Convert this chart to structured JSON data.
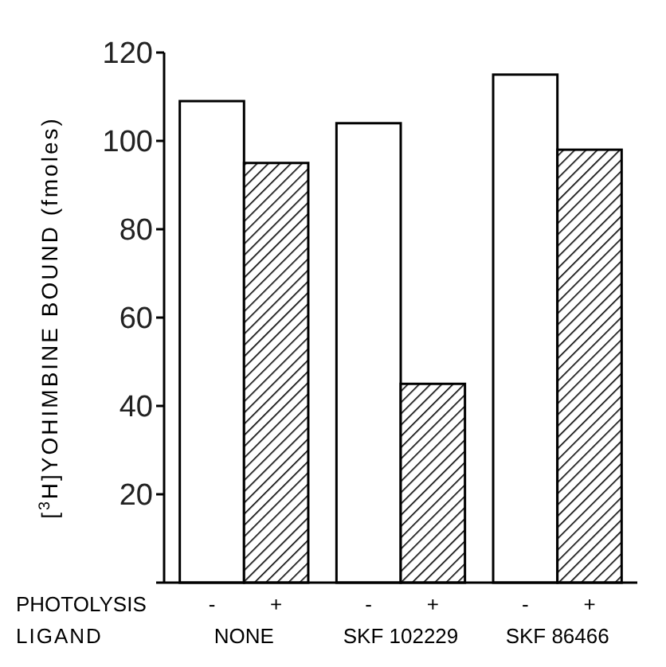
{
  "chart_data": {
    "type": "bar",
    "ylabel": "[$^{3}$H]YOHIMBINE BOUND (fmoles)",
    "xlabel": "LIGAND",
    "legend_title": "PHOTOLYSIS",
    "categories": [
      "NONE",
      "SKF 102229",
      "SKF 86466"
    ],
    "series": [
      {
        "name": "-",
        "color": "#ffffff",
        "values": [
          109,
          104,
          115
        ]
      },
      {
        "name": "+",
        "color": "#000000",
        "values": [
          95,
          45,
          98
        ]
      }
    ],
    "ylim": [
      0,
      120
    ],
    "yticks": [
      {
        "value": 0,
        "label": null
      },
      20,
      40,
      60,
      80,
      100,
      120
    ],
    "legend": false
  }
}
